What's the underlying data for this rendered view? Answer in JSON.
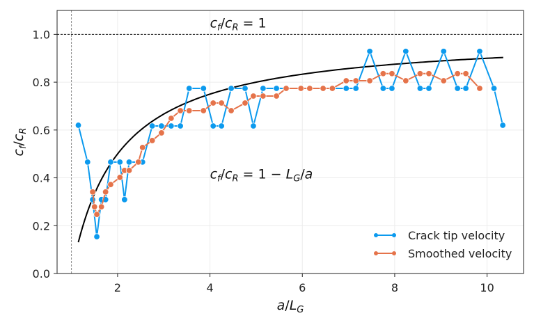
{
  "chart_data": {
    "type": "line",
    "title": "",
    "xlabel": "a/L_G",
    "ylabel": "c_f/c_R",
    "xlim": [
      0.69,
      10.79
    ],
    "ylim": [
      0.0,
      1.1
    ],
    "xticks": [
      2,
      4,
      6,
      8,
      10
    ],
    "xtick_labels": [
      "2",
      "4",
      "6",
      "8",
      "10"
    ],
    "yticks": [
      0.0,
      0.2,
      0.4,
      0.6,
      0.8,
      1.0
    ],
    "ytick_labels": [
      "0.0",
      "0.2",
      "0.4",
      "0.6",
      "0.8",
      "1.0"
    ],
    "grid": true,
    "legend_position": "bottom-right",
    "reference_lines": {
      "horizontal_y": 1.0,
      "vertical_x": 1.0
    },
    "annotations": [
      {
        "id": "unity",
        "parts": [
          "c",
          "f",
          "/",
          "c",
          "R",
          " = 1"
        ],
        "x": 4.0,
        "y": 1.02
      },
      {
        "id": "theory",
        "parts": [
          "c",
          "f",
          "/",
          "c",
          "R",
          " = 1 − ",
          "L",
          "G",
          "/",
          "a"
        ],
        "x": 4.0,
        "y": 0.4
      }
    ],
    "theory_curve": {
      "label": "c_f/c_R = 1 - L_G/a",
      "x_range": [
        1.15,
        10.35
      ],
      "color": "#000000"
    },
    "series": [
      {
        "name": "Crack tip velocity",
        "color": "#0c9aee",
        "x": [
          1.15,
          1.35,
          1.46,
          1.55,
          1.65,
          1.74,
          1.85,
          2.05,
          2.15,
          2.25,
          2.45,
          2.54,
          2.75,
          2.95,
          3.16,
          3.36,
          3.55,
          3.86,
          4.07,
          4.25,
          4.46,
          4.76,
          4.94,
          5.15,
          5.44,
          5.65,
          5.97,
          6.16,
          6.45,
          6.65,
          6.95,
          7.16,
          7.46,
          7.75,
          7.94,
          8.24,
          8.55,
          8.74,
          9.06,
          9.36,
          9.54,
          9.84,
          10.15,
          10.34
        ],
        "y": [
          0.62,
          0.466,
          0.309,
          0.154,
          0.309,
          0.309,
          0.466,
          0.466,
          0.309,
          0.466,
          0.466,
          0.466,
          0.617,
          0.617,
          0.617,
          0.617,
          0.774,
          0.774,
          0.617,
          0.617,
          0.774,
          0.774,
          0.617,
          0.774,
          0.774,
          0.774,
          0.774,
          0.774,
          0.774,
          0.774,
          0.774,
          0.774,
          0.929,
          0.774,
          0.774,
          0.929,
          0.774,
          0.774,
          0.929,
          0.774,
          0.774,
          0.929,
          0.774,
          0.62
        ]
      },
      {
        "name": "Smoothed velocity",
        "color": "#e5734a",
        "x": [
          1.46,
          1.5,
          1.55,
          1.65,
          1.74,
          1.85,
          2.05,
          2.15,
          2.25,
          2.45,
          2.54,
          2.75,
          2.95,
          3.16,
          3.36,
          3.55,
          3.86,
          4.07,
          4.25,
          4.46,
          4.76,
          4.94,
          5.15,
          5.44,
          5.65,
          5.97,
          6.16,
          6.45,
          6.65,
          6.95,
          7.16,
          7.46,
          7.75,
          7.94,
          8.24,
          8.55,
          8.74,
          9.06,
          9.36,
          9.54,
          9.84
        ],
        "y": [
          0.341,
          0.279,
          0.247,
          0.279,
          0.341,
          0.372,
          0.402,
          0.431,
          0.431,
          0.466,
          0.527,
          0.556,
          0.588,
          0.649,
          0.681,
          0.681,
          0.681,
          0.713,
          0.713,
          0.681,
          0.713,
          0.742,
          0.742,
          0.742,
          0.774,
          0.774,
          0.774,
          0.774,
          0.774,
          0.806,
          0.806,
          0.806,
          0.836,
          0.836,
          0.806,
          0.836,
          0.836,
          0.806,
          0.836,
          0.836,
          0.774
        ]
      }
    ],
    "axis_label_parts": {
      "x": [
        "a",
        "/",
        "L",
        "G"
      ],
      "y": [
        "c",
        "f",
        "/",
        "c",
        "R"
      ]
    }
  }
}
